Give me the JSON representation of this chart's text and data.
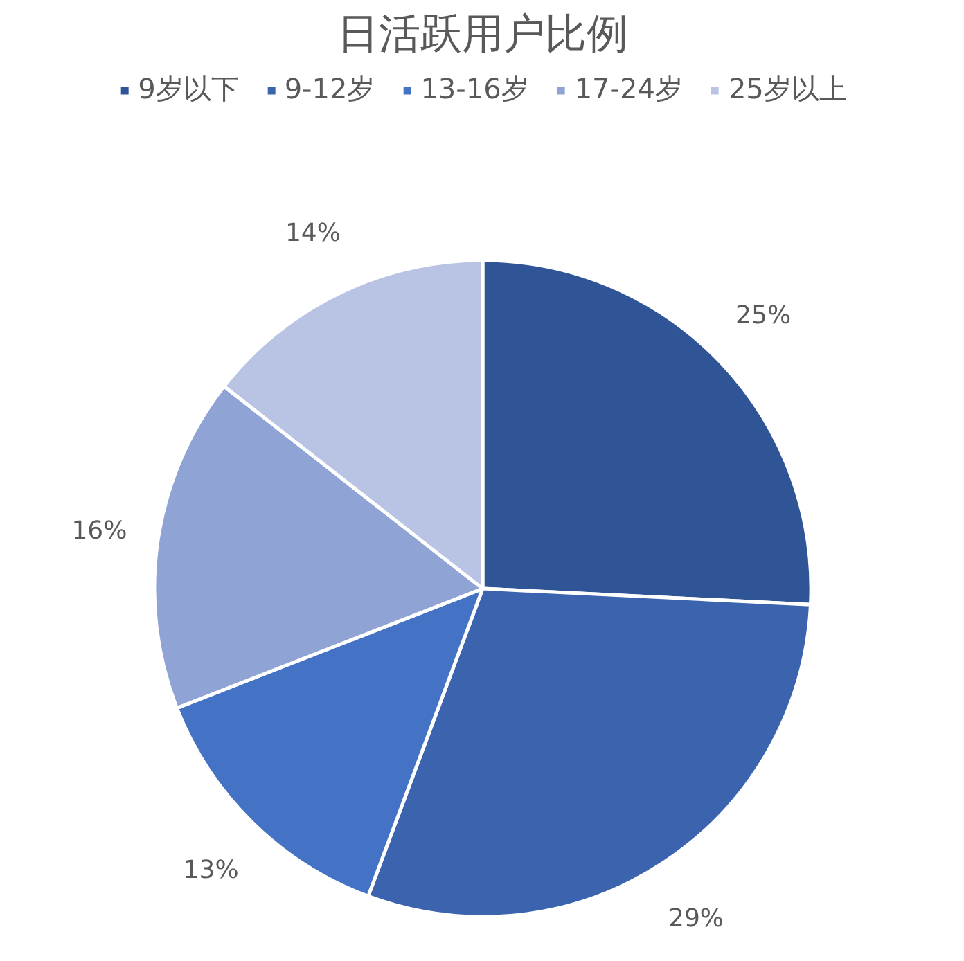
{
  "chart_data": {
    "type": "pie",
    "title": "日活跃用户比例",
    "categories": [
      "9岁以下",
      "9-12岁",
      "13-16岁",
      "17-24岁",
      "25岁以上"
    ],
    "values": [
      25,
      29,
      13,
      16,
      14
    ],
    "colors": [
      "#2f5597",
      "#3c64ae",
      "#4472c4",
      "#8fa4d4",
      "#b9c3e3"
    ],
    "value_labels": [
      "25%",
      "29%",
      "13%",
      "16%",
      "14%"
    ],
    "legend": "top"
  }
}
